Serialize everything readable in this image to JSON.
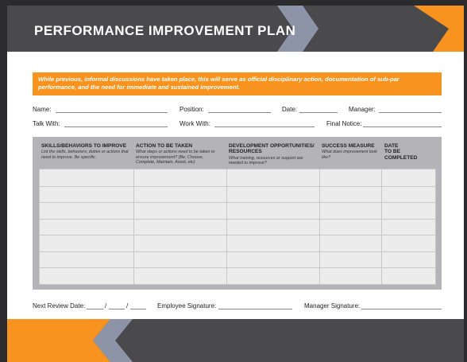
{
  "title": "PERFORMANCE IMPROVEMENT PLAN",
  "banner_text": "While previous, informal discussions have taken place, this will serve as official disciplinary action, documentation of sub-par performance, and the need for immediate and sustained improvement.",
  "fields": {
    "name": "Name:",
    "position": "Position:",
    "date": "Date:",
    "manager": "Manager:",
    "talk_with": "Talk With:",
    "work_with": "Work With:",
    "final_notice": "Final Notice:"
  },
  "columns": [
    {
      "title": "SKILLS/BEHAVIORS TO IMPROVE",
      "subtitle": "List the skills, behaviors, duties or actions that need to improve. Be specific."
    },
    {
      "title": "ACTION TO BE TAKEN",
      "subtitle": "What steps or actions need to be taken to ensure improvement? (Be, Choose, Complete, Maintain, Avoid, etc)"
    },
    {
      "title": "DEVELOPMENT OPPORTUNITIES/ RESOURCES",
      "subtitle": "What training, resources or support are needed to improve?"
    },
    {
      "title": "SUCCESS MEASURE",
      "subtitle": "What does improvement look like?"
    },
    {
      "title": "DATE TO BE COMPLETED",
      "subtitle": ""
    }
  ],
  "row_count": 7,
  "bottom": {
    "next_review_date": "Next Review Date:",
    "date_sep_1": "/",
    "date_sep_2": "/",
    "employee_signature": "Employee Signature:",
    "manager_signature": "Manager Signature:"
  },
  "colors": {
    "accent_orange": "#f7931e",
    "header_gray": "#4a4a4d",
    "chevron_light": "#8e94a8",
    "table_gray": "#b4b4b8"
  }
}
